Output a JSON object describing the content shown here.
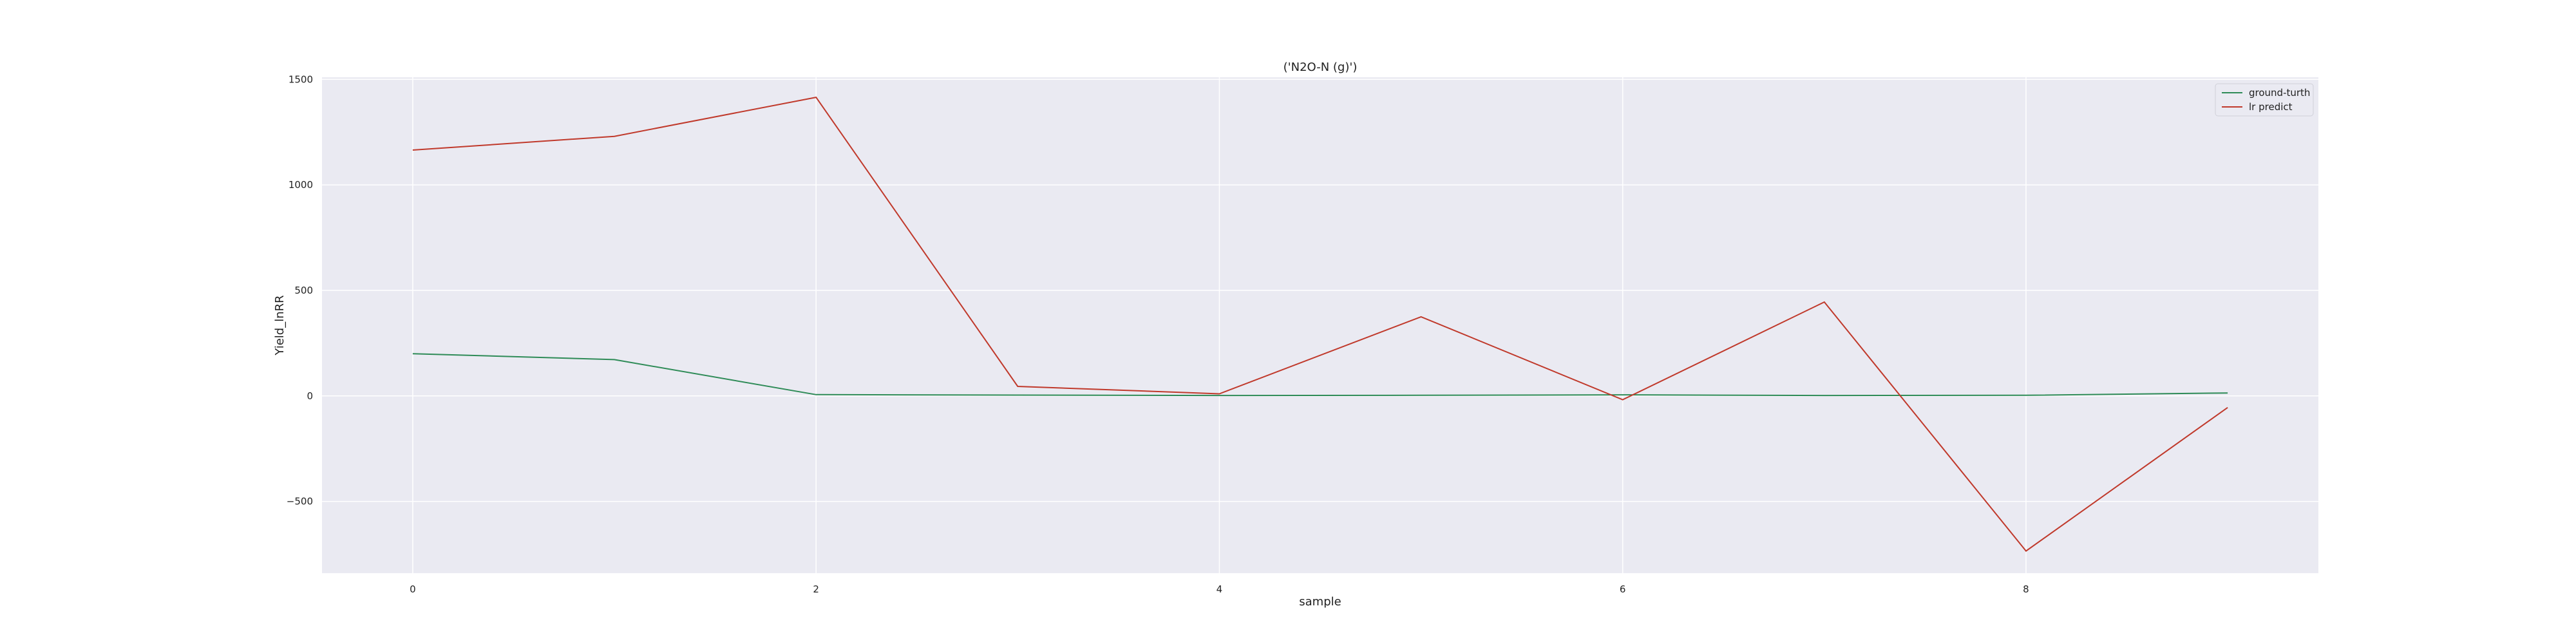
{
  "chart_data": {
    "type": "line",
    "title": "('N2O-N (g)')",
    "xlabel": "sample",
    "ylabel": "Yield_lnRR",
    "x": [
      0,
      1,
      2,
      3,
      4,
      5,
      6,
      7,
      8,
      9
    ],
    "xlim": [
      -0.45,
      9.45
    ],
    "ylim": [
      -840,
      1510
    ],
    "xticks": [
      0,
      2,
      4,
      6,
      8
    ],
    "yticks": [
      -500,
      0,
      500,
      1000,
      1500
    ],
    "ytick_labels": [
      "−500",
      "0",
      "500",
      "1000",
      "1500"
    ],
    "grid": true,
    "legend_position": "top-right",
    "series": [
      {
        "name": "ground-turth",
        "color": "#2e8b57",
        "values": [
          200,
          172,
          6,
          4,
          2,
          3,
          5,
          2,
          3,
          14
        ]
      },
      {
        "name": "lr predict",
        "color": "#c0392b",
        "values": [
          1165,
          1230,
          1415,
          45,
          10,
          375,
          -18,
          445,
          -735,
          -55
        ]
      }
    ],
    "colors": {
      "plot_background": "#eaeaf2",
      "grid": "#ffffff"
    }
  }
}
